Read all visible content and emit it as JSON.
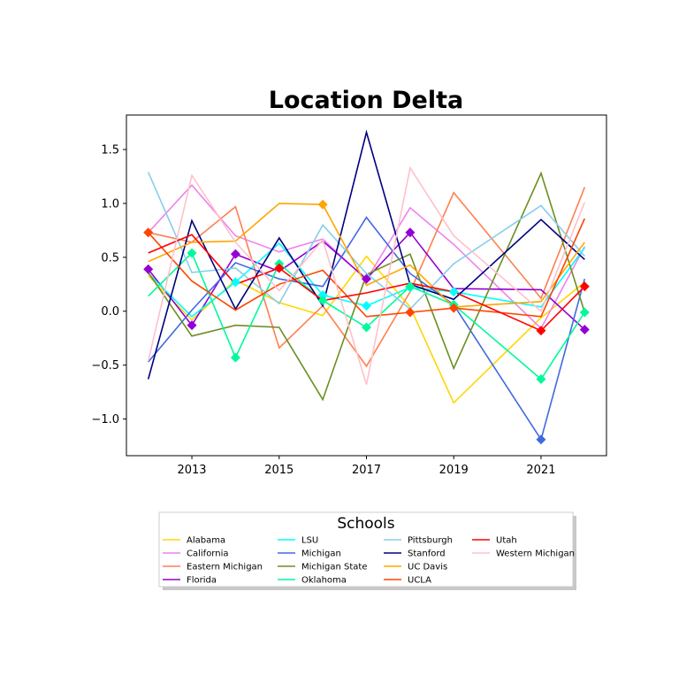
{
  "chart_data": {
    "type": "line",
    "title": "Location Delta",
    "xlabel": "",
    "ylabel": "",
    "xlim": [
      2011.5,
      2022.5
    ],
    "ylim": [
      -1.34,
      1.82
    ],
    "x": [
      2012,
      2013,
      2014,
      2015,
      2016,
      2017,
      2018,
      2019,
      2021,
      2022
    ],
    "xticks": [
      2013,
      2015,
      2017,
      2019,
      2021
    ],
    "yticks": [
      -1.0,
      -0.5,
      0.0,
      0.5,
      1.0,
      1.5
    ],
    "xtick_labels": [
      "2013",
      "2015",
      "2017",
      "2019",
      "2021"
    ],
    "ytick_labels": [
      "−1.0",
      "−0.5",
      "0.0",
      "0.5",
      "1.0",
      "1.5"
    ],
    "grid": false,
    "legend": {
      "title": "Schools",
      "placement": "below",
      "columns": 4
    },
    "series": [
      {
        "name": "Alabama",
        "color": "#FFD700",
        "values": [
          0.33,
          -0.08,
          0.29,
          0.08,
          -0.04,
          0.51,
          0.04,
          -0.85,
          -0.06,
          0.27
        ],
        "markers": []
      },
      {
        "name": "California",
        "color": "#EE82EE",
        "values": [
          0.73,
          1.17,
          0.7,
          0.55,
          0.67,
          0.29,
          0.96,
          0.62,
          -0.16,
          0.6
        ],
        "markers": []
      },
      {
        "name": "Eastern Michigan",
        "color": "#FF7F50",
        "values": [
          0.73,
          0.64,
          0.97,
          -0.34,
          0.05,
          -0.51,
          0.18,
          1.1,
          0.12,
          1.15
        ],
        "markers": []
      },
      {
        "name": "Florida",
        "color": "#9400D3",
        "values": [
          0.39,
          -0.13,
          0.53,
          0.37,
          0.65,
          0.3,
          0.73,
          0.21,
          0.2,
          -0.17
        ],
        "markers": [
          2012,
          2013,
          2014,
          2017,
          2018,
          2022
        ]
      },
      {
        "name": "LSU",
        "color": "#00FFFF",
        "values": [
          0.35,
          -0.05,
          0.27,
          0.63,
          0.15,
          0.05,
          0.22,
          0.18,
          0.04,
          0.59
        ],
        "markers": [
          2014,
          2016,
          2017,
          2018,
          2019
        ]
      },
      {
        "name": "Michigan",
        "color": "#4169E1",
        "values": [
          -0.47,
          0.01,
          0.45,
          0.3,
          0.23,
          0.87,
          0.35,
          0.06,
          -1.19,
          0.3
        ],
        "markers": [
          2021
        ]
      },
      {
        "name": "Michigan State",
        "color": "#6B8E23",
        "values": [
          0.36,
          -0.23,
          -0.13,
          -0.15,
          -0.82,
          0.34,
          0.53,
          -0.53,
          1.28,
          -0.01
        ],
        "markers": []
      },
      {
        "name": "Oklahoma",
        "color": "#00FA9A",
        "values": [
          0.14,
          0.54,
          -0.43,
          0.44,
          0.1,
          -0.15,
          0.23,
          0.06,
          -0.63,
          -0.01
        ],
        "markers": [
          2013,
          2014,
          2015,
          2016,
          2017,
          2018,
          2019,
          2021,
          2022
        ]
      },
      {
        "name": "Pittsburgh",
        "color": "#87CEEB",
        "values": [
          1.29,
          0.36,
          0.4,
          0.07,
          0.8,
          0.35,
          0.02,
          0.44,
          0.98,
          0.51
        ],
        "markers": []
      },
      {
        "name": "Stanford",
        "color": "#000080",
        "values": [
          -0.63,
          0.84,
          0.02,
          0.68,
          0.05,
          1.66,
          0.25,
          0.11,
          0.85,
          0.48
        ],
        "markers": []
      },
      {
        "name": "UC Davis",
        "color": "#FFA500",
        "values": [
          0.46,
          0.64,
          0.65,
          1.0,
          0.99,
          0.24,
          0.43,
          0.04,
          0.09,
          0.64
        ],
        "markers": [
          2016
        ]
      },
      {
        "name": "UCLA",
        "color": "#FF4500",
        "values": [
          0.73,
          0.28,
          0.01,
          0.25,
          0.38,
          -0.05,
          -0.01,
          0.03,
          -0.05,
          0.86
        ],
        "markers": [
          2012,
          2018,
          2019
        ]
      },
      {
        "name": "Utah",
        "color": "#FF0000",
        "values": [
          0.54,
          0.71,
          0.25,
          0.4,
          0.1,
          0.17,
          0.26,
          0.18,
          -0.18,
          0.23
        ],
        "markers": [
          2015,
          2021,
          2022
        ]
      },
      {
        "name": "Western Michigan",
        "color": "#FFC0CB",
        "values": [
          -0.46,
          1.26,
          0.64,
          0.19,
          0.66,
          -0.68,
          1.33,
          0.7,
          0.0,
          1.01
        ],
        "markers": []
      }
    ]
  }
}
